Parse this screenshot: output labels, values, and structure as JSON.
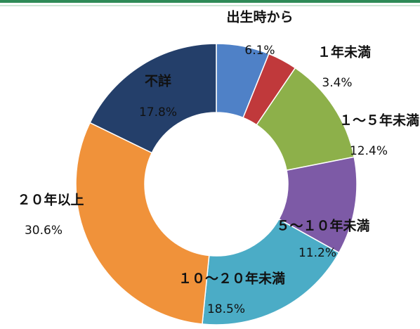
{
  "chart_data": {
    "type": "donut",
    "categories": [
      "出生時から",
      "１年未満",
      "１～５年未満",
      "５～１０年未満",
      "１０～２０年未満",
      "２０年以上",
      "不詳"
    ],
    "values": [
      6.1,
      3.4,
      12.4,
      11.2,
      18.5,
      30.6,
      17.8
    ],
    "value_labels": [
      "6.1%",
      "3.4%",
      "12.4%",
      "11.2%",
      "18.5%",
      "30.6%",
      "17.8%"
    ],
    "colors": [
      "#4f81c7",
      "#c0393b",
      "#8db04a",
      "#7d5aa6",
      "#4bacc6",
      "#f0923a",
      "#243f6a"
    ]
  }
}
